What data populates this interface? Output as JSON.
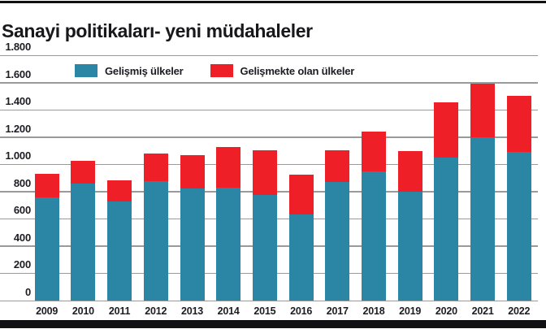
{
  "page": {
    "title": "Sanayi politikaları- yeni müdahaleler"
  },
  "legend": {
    "items": [
      {
        "label": "Gelişmiş ülkeler",
        "color": "#2B85A5"
      },
      {
        "label": "Gelişmekte olan ülkeler",
        "color": "#EE1F26"
      }
    ]
  },
  "colors": {
    "developed": "#2B85A5",
    "developing": "#EE1F26",
    "gridline": "#9a9a9a",
    "text": "#1c1c22",
    "frame": "#111114"
  },
  "chart_data": {
    "type": "bar",
    "stacked": true,
    "title": "Sanayi politikaları- yeni müdahaleler",
    "xlabel": "",
    "ylabel": "",
    "ylim": [
      0,
      1800
    ],
    "grid": "horizontal",
    "legend_position": "top-left",
    "categories": [
      "2009",
      "2010",
      "2011",
      "2012",
      "2013",
      "2014",
      "2015",
      "2016",
      "2017",
      "2018",
      "2019",
      "2020",
      "2021",
      "2022"
    ],
    "series": [
      {
        "name": "Gelişmiş ülkeler",
        "color": "#2B85A5",
        "values": [
          755,
          860,
          730,
          875,
          820,
          830,
          775,
          630,
          870,
          945,
          800,
          1050,
          1200,
          1090
        ]
      },
      {
        "name": "Gelişmekte olan ülkeler",
        "color": "#EE1F26",
        "values": [
          175,
          165,
          155,
          205,
          245,
          295,
          330,
          295,
          235,
          295,
          295,
          405,
          390,
          410
        ]
      }
    ],
    "totals": [
      930,
      1025,
      885,
      1080,
      1065,
      1125,
      1105,
      925,
      1105,
      1240,
      1095,
      1455,
      1590,
      1500
    ],
    "yticks": [
      {
        "label": "1.800",
        "value": 1800
      },
      {
        "label": "1.600",
        "value": 1600
      },
      {
        "label": "1.400",
        "value": 1400
      },
      {
        "label": "1.200",
        "value": 1200
      },
      {
        "label": "1.000",
        "value": 1000
      },
      {
        "label": "800",
        "value": 800
      },
      {
        "label": "600",
        "value": 600
      },
      {
        "label": "400",
        "value": 400
      },
      {
        "label": "200",
        "value": 200
      },
      {
        "label": "0",
        "value": 0
      }
    ]
  }
}
